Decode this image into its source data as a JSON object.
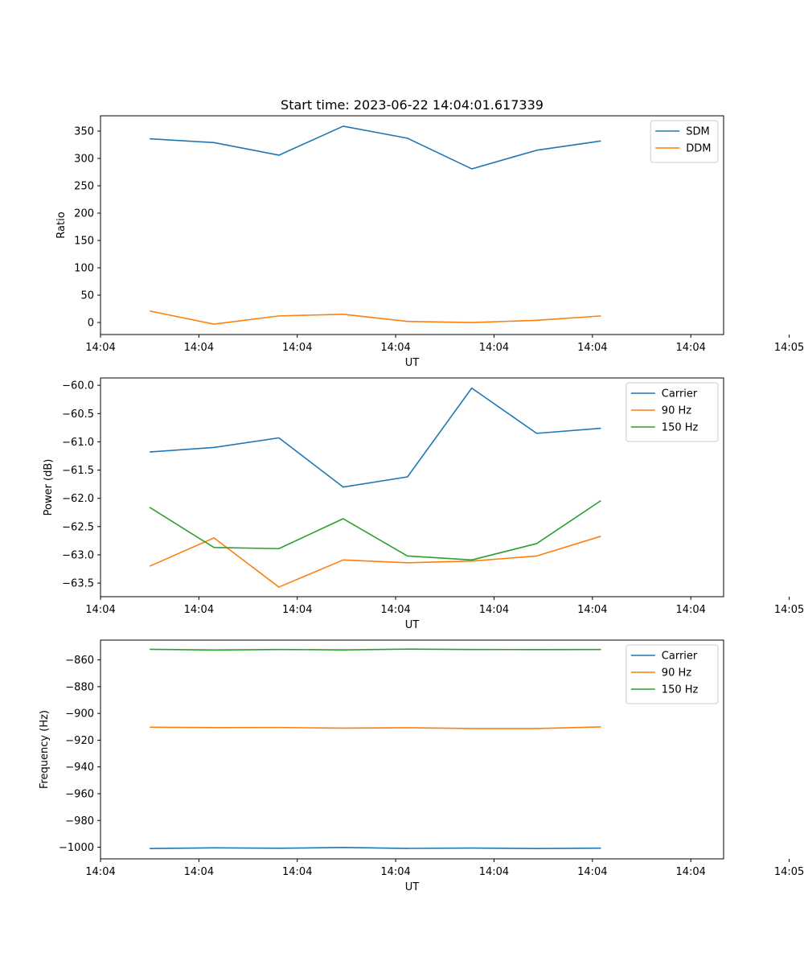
{
  "title": "Start time: 2023-06-22 14:04:01.617339",
  "chart_data": [
    {
      "type": "line",
      "xlabel": "UT",
      "ylabel": "Ratio",
      "xlim": [
        0,
        9.5
      ],
      "x_ticks": [
        {
          "x": 0,
          "label": "14:04"
        },
        {
          "x": 1.5,
          "label": "14:04"
        },
        {
          "x": 3,
          "label": "14:04"
        },
        {
          "x": 4.5,
          "label": "14:04"
        },
        {
          "x": 6,
          "label": "14:04"
        },
        {
          "x": 7.5,
          "label": "14:04"
        },
        {
          "x": 9,
          "label": "14:04"
        },
        {
          "x": 10.5,
          "label": "14:05"
        }
      ],
      "ylim": [
        -22,
        378
      ],
      "y_ticks": [
        0,
        50,
        100,
        150,
        200,
        250,
        300,
        350
      ],
      "x": [
        0.75,
        1.73,
        2.72,
        3.7,
        4.68,
        5.66,
        6.65,
        7.63
      ],
      "legend_position": "upper right",
      "grid": false,
      "series": [
        {
          "name": "SDM",
          "color": "#1f77b4",
          "values": [
            336,
            329,
            306,
            359,
            337,
            281,
            315,
            332
          ]
        },
        {
          "name": "DDM",
          "color": "#ff7f0e",
          "values": [
            21,
            -3,
            12,
            15,
            2,
            0,
            4,
            12
          ]
        }
      ]
    },
    {
      "type": "line",
      "xlabel": "UT",
      "ylabel": "Power (dB)",
      "xlim": [
        0,
        9.5
      ],
      "x_ticks": [
        {
          "x": 0,
          "label": "14:04"
        },
        {
          "x": 1.5,
          "label": "14:04"
        },
        {
          "x": 3,
          "label": "14:04"
        },
        {
          "x": 4.5,
          "label": "14:04"
        },
        {
          "x": 6,
          "label": "14:04"
        },
        {
          "x": 7.5,
          "label": "14:04"
        },
        {
          "x": 9,
          "label": "14:04"
        },
        {
          "x": 10.5,
          "label": "14:05"
        }
      ],
      "ylim": [
        -63.74,
        -59.87
      ],
      "y_ticks": [
        -63.5,
        -63.0,
        -62.5,
        -62.0,
        -61.5,
        -61.0,
        -60.5,
        -60.0
      ],
      "y_tick_labels": [
        "−63.5",
        "−63.0",
        "−62.5",
        "−62.0",
        "−61.5",
        "−61.0",
        "−60.5",
        "−60.0"
      ],
      "x": [
        0.75,
        1.73,
        2.72,
        3.7,
        4.68,
        5.66,
        6.65,
        7.63
      ],
      "legend_position": "upper right",
      "grid": false,
      "series": [
        {
          "name": "Carrier",
          "color": "#1f77b4",
          "values": [
            -61.18,
            -61.1,
            -60.93,
            -61.8,
            -61.62,
            -60.05,
            -60.85,
            -60.76
          ]
        },
        {
          "name": "90 Hz",
          "color": "#ff7f0e",
          "values": [
            -63.2,
            -62.7,
            -63.57,
            -63.09,
            -63.14,
            -63.11,
            -63.02,
            -62.67
          ]
        },
        {
          "name": "150 Hz",
          "color": "#2ca02c",
          "values": [
            -62.16,
            -62.87,
            -62.89,
            -62.36,
            -63.02,
            -63.09,
            -62.8,
            -62.04
          ]
        }
      ]
    },
    {
      "type": "line",
      "xlabel": "UT",
      "ylabel": "Frequency (Hz)",
      "xlim": [
        0,
        9.5
      ],
      "x_ticks": [
        {
          "x": 0,
          "label": "14:04"
        },
        {
          "x": 1.5,
          "label": "14:04"
        },
        {
          "x": 3,
          "label": "14:04"
        },
        {
          "x": 4.5,
          "label": "14:04"
        },
        {
          "x": 6,
          "label": "14:04"
        },
        {
          "x": 7.5,
          "label": "14:04"
        },
        {
          "x": 9,
          "label": "14:04"
        },
        {
          "x": 10.5,
          "label": "14:05"
        }
      ],
      "ylim": [
        -1008.7,
        -845.2
      ],
      "y_ticks": [
        -1000,
        -980,
        -960,
        -940,
        -920,
        -900,
        -880,
        -860
      ],
      "y_tick_labels": [
        "−1000",
        "−980",
        "−960",
        "−940",
        "−920",
        "−900",
        "−880",
        "−860"
      ],
      "x": [
        0.75,
        1.73,
        2.72,
        3.7,
        4.68,
        5.66,
        6.65,
        7.63
      ],
      "legend_position": "upper right",
      "grid": false,
      "series": [
        {
          "name": "Carrier",
          "color": "#1f77b4",
          "values": [
            -1001.0,
            -1000.5,
            -1000.8,
            -1000.2,
            -1000.9,
            -1000.6,
            -1001.0,
            -1000.7
          ]
        },
        {
          "name": "90 Hz",
          "color": "#ff7f0e",
          "values": [
            -910.3,
            -910.6,
            -910.5,
            -911.0,
            -910.7,
            -911.3,
            -911.3,
            -910.1
          ]
        },
        {
          "name": "150 Hz",
          "color": "#2ca02c",
          "values": [
            -852.1,
            -852.6,
            -852.2,
            -852.5,
            -851.9,
            -852.2,
            -852.3,
            -852.2
          ]
        }
      ]
    }
  ]
}
